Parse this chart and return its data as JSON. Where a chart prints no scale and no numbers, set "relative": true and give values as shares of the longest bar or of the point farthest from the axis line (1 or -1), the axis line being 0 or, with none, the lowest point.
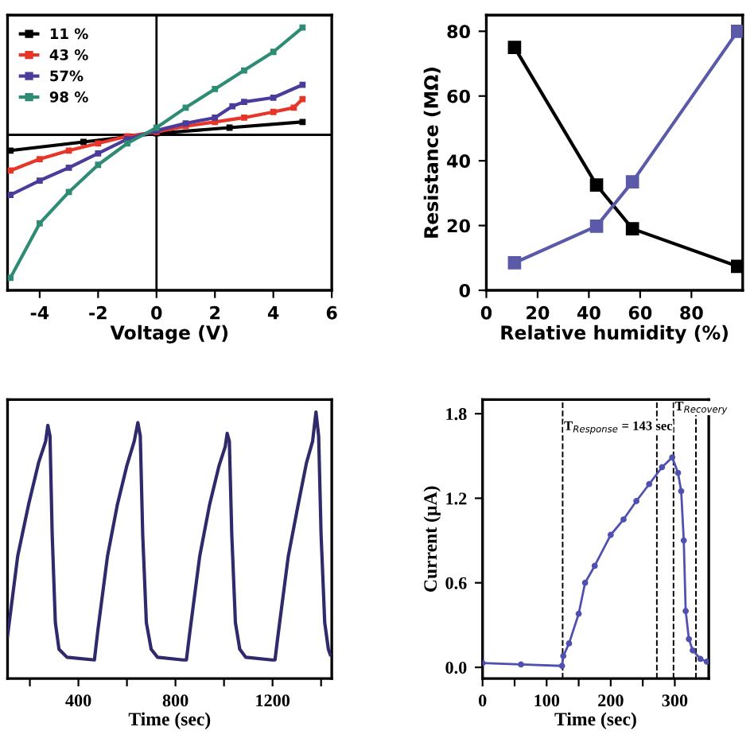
{
  "chart_data": [
    {
      "type": "line",
      "relative": true,
      "xlabel": "Voltage (V)",
      "xlim": [
        -5.1,
        6
      ],
      "xticks": [
        -4,
        -2,
        0,
        2,
        4,
        6
      ],
      "marker": "square",
      "legend": "top left",
      "grid": false,
      "ref_lines": [
        {
          "axis": "x",
          "value": 0,
          "color": "#000000",
          "line_style": "solid"
        },
        {
          "axis": "y",
          "value": 0,
          "color": "#000000",
          "line_style": "solid"
        }
      ],
      "series": [
        {
          "name": "11 %",
          "color": "#000000",
          "x": [
            -5,
            -2.5,
            0,
            2.5,
            5
          ],
          "values": [
            -0.11,
            -0.05,
            0.01,
            0.05,
            0.09
          ]
        },
        {
          "name": "43 %",
          "color": "#e8352a",
          "x": [
            -5,
            -4,
            -3,
            -2,
            -1,
            0,
            1,
            2,
            3,
            4,
            4.7,
            5
          ],
          "values": [
            -0.25,
            -0.17,
            -0.11,
            -0.06,
            -0.01,
            0.02,
            0.06,
            0.09,
            0.12,
            0.16,
            0.19,
            0.25
          ]
        },
        {
          "name": "57%",
          "color": "#4b3c9c",
          "x": [
            -5,
            -4,
            -3,
            -2,
            -1,
            0,
            1,
            2,
            2.6,
            3,
            4,
            5
          ],
          "values": [
            -0.42,
            -0.32,
            -0.23,
            -0.13,
            -0.03,
            0.03,
            0.08,
            0.12,
            0.2,
            0.23,
            0.26,
            0.35
          ]
        },
        {
          "name": "98 %",
          "color": "#2e8b74",
          "x": [
            -5,
            -4,
            -3,
            -2,
            -1,
            0,
            1,
            2,
            3,
            4,
            5
          ],
          "values": [
            -1,
            -0.62,
            -0.4,
            -0.21,
            -0.06,
            0.05,
            0.19,
            0.32,
            0.45,
            0.58,
            0.75
          ]
        }
      ]
    },
    {
      "type": "line",
      "xlabel": "Relative humidity (%)",
      "ylabel": "Resistance (MΩ)",
      "xlim": [
        0,
        100
      ],
      "xticks": [
        0,
        20,
        40,
        60,
        80
      ],
      "ylim": [
        0,
        85
      ],
      "yticks": [
        0,
        20,
        40,
        60,
        80
      ],
      "marker": "square",
      "grid": false,
      "series": [
        {
          "color": "#000000",
          "x": [
            11,
            43,
            57,
            98
          ],
          "values": [
            75,
            32.5,
            19,
            7.4
          ]
        },
        {
          "color": "#5a5aa8",
          "x": [
            11,
            43,
            57,
            98
          ],
          "values": [
            8.5,
            19.8,
            33.5,
            80
          ]
        }
      ]
    },
    {
      "type": "line",
      "relative": true,
      "xlabel": "Time (sec)",
      "xlim": [
        108,
        1444
      ],
      "xticks": [
        {
          "value": 200,
          "label": null
        },
        400,
        {
          "value": 600,
          "label": null
        },
        800,
        {
          "value": 1000,
          "label": null
        },
        1200,
        {
          "value": 1400,
          "label": null
        }
      ],
      "grid": false,
      "series": [
        {
          "color": "#2e2a6b",
          "x": [
            108,
            150,
            194,
            236,
            265,
            274,
            283,
            292,
            305,
            320,
            353,
            466,
            480,
            520,
            560,
            600,
            630,
            645,
            655,
            665,
            680,
            700,
            726,
            832,
            845,
            860,
            900,
            940,
            980,
            1005,
            1013,
            1022,
            1032,
            1047,
            1065,
            1090,
            1198,
            1210,
            1225,
            1265,
            1305,
            1340,
            1365,
            1379,
            1390,
            1400,
            1415,
            1430,
            1438
          ],
          "values": [
            0.16,
            0.46,
            0.65,
            0.81,
            0.89,
            0.95,
            0.91,
            0.54,
            0.21,
            0.11,
            0.08,
            0.07,
            0.18,
            0.46,
            0.65,
            0.8,
            0.89,
            0.96,
            0.91,
            0.54,
            0.21,
            0.11,
            0.08,
            0.07,
            0.07,
            0.18,
            0.46,
            0.65,
            0.8,
            0.87,
            0.92,
            0.89,
            0.54,
            0.21,
            0.11,
            0.08,
            0.07,
            0.07,
            0.18,
            0.46,
            0.65,
            0.81,
            0.89,
            1.0,
            0.91,
            0.54,
            0.21,
            0.11,
            0.09
          ]
        }
      ]
    },
    {
      "type": "line",
      "xlabel": "Time (sec)",
      "ylabel": "Current (µA)",
      "xlim": [
        0,
        353
      ],
      "xticks": [
        0,
        {
          "value": 50,
          "label": null
        },
        100,
        {
          "value": 150,
          "label": null
        },
        200,
        {
          "value": 250,
          "label": null
        },
        300
      ],
      "ylim": [
        -0.08,
        1.9
      ],
      "yticks": [
        {
          "value": 0,
          "label": "0.0"
        },
        0.6,
        1.2,
        1.8
      ],
      "marker": "circle",
      "grid": false,
      "ref_lines": [
        {
          "axis": "x",
          "value": 125,
          "color": "#000000",
          "line_style": "dashed"
        },
        {
          "axis": "x",
          "value": 272,
          "color": "#000000",
          "line_style": "dashed"
        },
        {
          "axis": "x",
          "value": 298,
          "color": "#000000",
          "line_style": "dashed"
        },
        {
          "axis": "x",
          "value": 333,
          "color": "#000000",
          "line_style": "dashed"
        }
      ],
      "annotations": [
        {
          "text": "T$_{Response}$ = 143 sec",
          "x": 127,
          "y": 1.7
        },
        {
          "text": "T$_{Recovery}$",
          "x": 300,
          "y": 1.84
        }
      ],
      "series": [
        {
          "color": "#5050b0",
          "x": [
            0,
            60,
            124,
            126,
            135,
            150,
            160,
            175,
            200,
            220,
            240,
            260,
            280,
            296,
            305,
            310,
            314,
            317,
            322,
            328,
            340,
            350
          ],
          "values": [
            0.03,
            0.02,
            0.01,
            0.08,
            0.17,
            0.38,
            0.6,
            0.72,
            0.94,
            1.05,
            1.18,
            1.3,
            1.42,
            1.49,
            1.38,
            1.25,
            0.9,
            0.4,
            0.2,
            0.12,
            0.06,
            0.04
          ]
        }
      ]
    }
  ]
}
